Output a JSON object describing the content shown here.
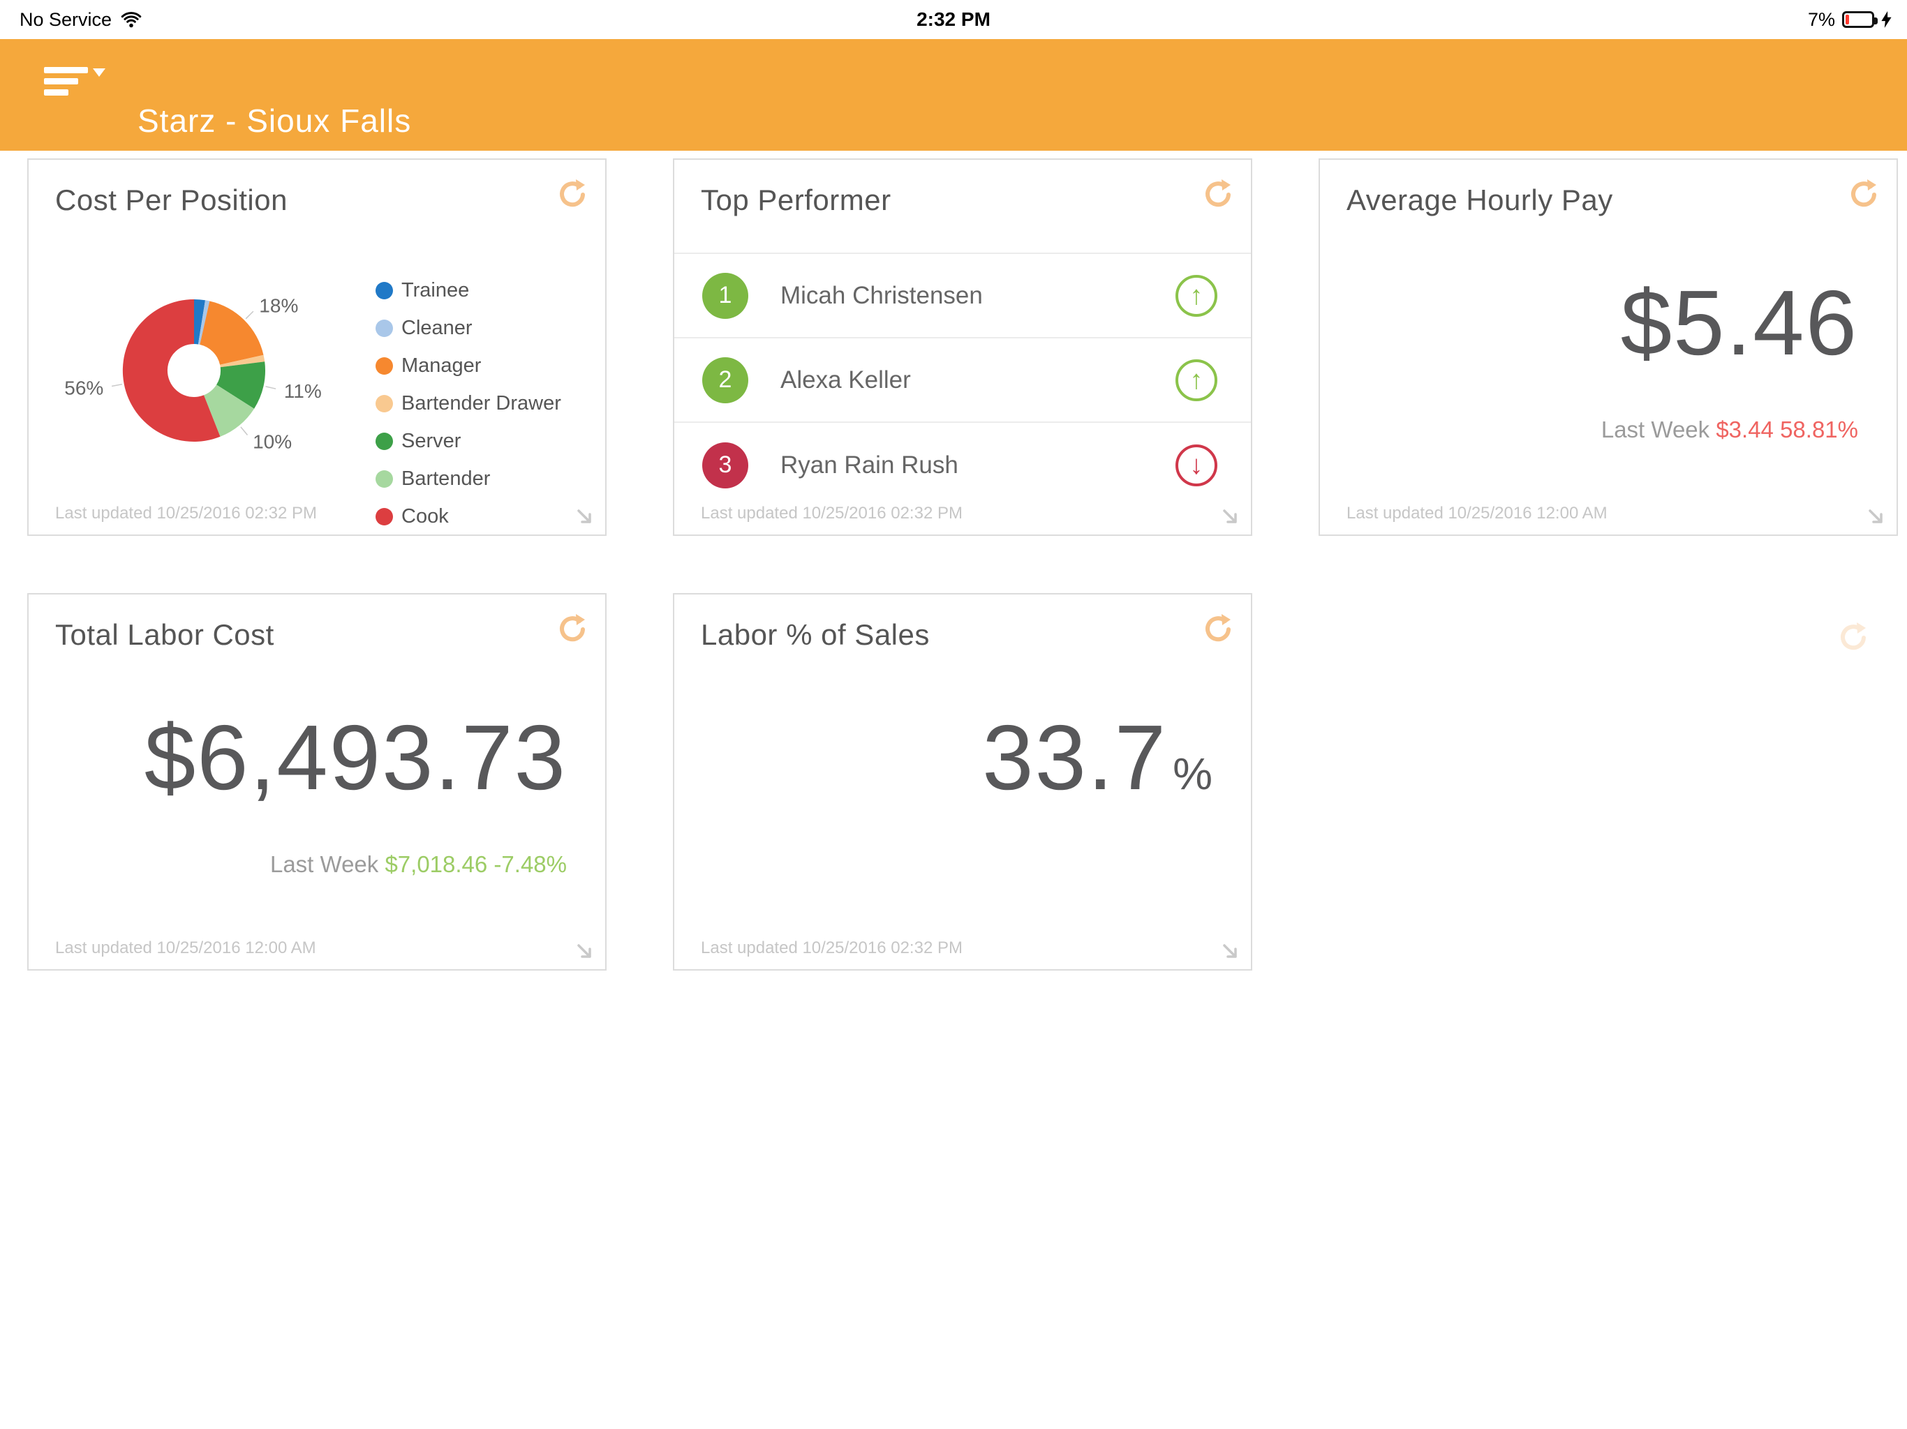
{
  "status_bar": {
    "carrier": "No Service",
    "time": "2:32 PM",
    "battery_percent": "7%"
  },
  "header": {
    "title": "Starz - Sioux Falls",
    "background": "#f5a83c"
  },
  "colors": {
    "accent_orange": "#f5a83c",
    "icon_orange": "#f6c28b",
    "positive_green": "#9ccc65",
    "negative_red": "#ef6461",
    "rank_green": "#7db843",
    "rank_red": "#c2314b",
    "trend_green": "#8bc34a",
    "trend_red": "#d0374a"
  },
  "cards": {
    "cost_per_position": {
      "title": "Cost Per Position",
      "last_updated": "Last updated 10/25/2016 02:32 PM",
      "chart_data": {
        "type": "pie",
        "donut": true,
        "legend_position": "right",
        "slices": [
          {
            "label": "Trainee",
            "value": 2.5,
            "color": "#2079c7",
            "pct_label": "",
            "show_label": false
          },
          {
            "label": "Cleaner",
            "value": 1,
            "color": "#a9c7e9",
            "pct_label": "",
            "show_label": false
          },
          {
            "label": "Manager",
            "value": 18,
            "color": "#f6882f",
            "pct_label": "18%",
            "show_label": true
          },
          {
            "label": "Bartender Drawer",
            "value": 1.5,
            "color": "#f9c990",
            "pct_label": "",
            "show_label": false
          },
          {
            "label": "Server",
            "value": 11,
            "color": "#3da048",
            "pct_label": "11%",
            "show_label": true
          },
          {
            "label": "Bartender",
            "value": 10,
            "color": "#a6d89f",
            "pct_label": "10%",
            "show_label": true
          },
          {
            "label": "Cook",
            "value": 56,
            "color": "#dc3e40",
            "pct_label": "56%",
            "show_label": true
          }
        ]
      }
    },
    "top_performer": {
      "title": "Top Performer",
      "last_updated": "Last updated 10/25/2016 02:32 PM",
      "rows": [
        {
          "rank": "1",
          "name": "Micah Christensen",
          "trend": "up"
        },
        {
          "rank": "2",
          "name": "Alexa Keller",
          "trend": "up"
        },
        {
          "rank": "3",
          "name": "Ryan Rain Rush",
          "trend": "down"
        }
      ]
    },
    "average_hourly_pay": {
      "title": "Average Hourly Pay",
      "value": "$5.46",
      "last_week_label": "Last Week",
      "last_week_value": "$3.44 58.81%",
      "last_week_trend": "negative",
      "last_updated": "Last updated 10/25/2016 12:00 AM"
    },
    "total_labor_cost": {
      "title": "Total Labor Cost",
      "value": "$6,493.73",
      "last_week_label": "Last Week",
      "last_week_value": "$7,018.46 -7.48%",
      "last_week_trend": "positive",
      "last_updated": "Last updated 10/25/2016 12:00 AM"
    },
    "labor_pct_of_sales": {
      "title": "Labor % of Sales",
      "value": "33.7",
      "unit": "%",
      "last_updated": "Last updated 10/25/2016 02:32 PM"
    }
  }
}
